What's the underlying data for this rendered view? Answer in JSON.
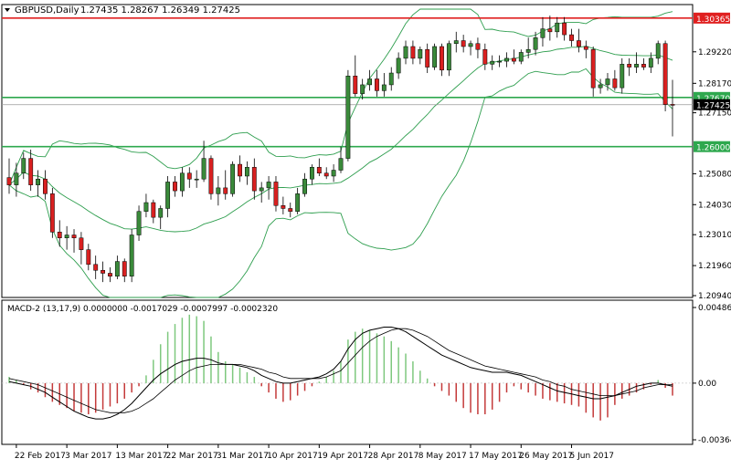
{
  "header": {
    "symbol": "GBPUSD,Daily",
    "ohlc": "1.27435 1.28267 1.26349 1.27425"
  },
  "indicator": {
    "label": "MACD-2 (13,17,9) 0.0000000 -0.0017029 -0.0007997 -0.0002320"
  },
  "colors": {
    "background": "#ffffff",
    "frame": "#000000",
    "bull_candle": "#3a8a3a",
    "bear_candle": "#d92020",
    "bollinger": "#2e9e4e",
    "resistance_line": "#e02020",
    "support_line": "#2ea84e",
    "hist_pos": "#7ec87e",
    "hist_neg": "#c43a3a"
  },
  "chart_data": [
    {
      "type": "candlestick",
      "title": "GBPUSD,Daily",
      "ylim": [
        1.2094,
        1.3036
      ],
      "y_ticks": [
        1.3036,
        1.2922,
        1.2815,
        1.2767,
        1.2715,
        1.26,
        1.2508,
        1.2403,
        1.2301,
        1.2196,
        1.2094
      ],
      "y_tick_labels": [
        "1.30365",
        "1.29220",
        "1.28170",
        "1.27670",
        "1.27150",
        "1.26000",
        "1.25080",
        "1.24030",
        "1.23010",
        "1.21960",
        "1.20940"
      ],
      "x_tick_labels": [
        "22 Feb 2017",
        "3 Mar 2017",
        "13 Mar 2017",
        "22 Mar 2017",
        "31 Mar 2017",
        "10 Apr 2017",
        "19 Apr 2017",
        "28 Apr 2017",
        "8 May 2017",
        "17 May 2017",
        "26 May 2017",
        "5 Jun 2017"
      ],
      "current_price_label": "1.27425",
      "horizontal_levels": [
        {
          "value": 1.30365,
          "label": "1.30365",
          "color": "#e02020"
        },
        {
          "value": 1.2767,
          "label": "1.27670",
          "color": "#2ea84e"
        },
        {
          "value": 1.26,
          "label": "1.26000",
          "color": "#2ea84e"
        }
      ],
      "candles": [
        {
          "o": 1.2495,
          "h": 1.256,
          "l": 1.244,
          "c": 1.247
        },
        {
          "o": 1.247,
          "h": 1.2545,
          "l": 1.243,
          "c": 1.251
        },
        {
          "o": 1.251,
          "h": 1.258,
          "l": 1.249,
          "c": 1.256
        },
        {
          "o": 1.256,
          "h": 1.259,
          "l": 1.245,
          "c": 1.247
        },
        {
          "o": 1.247,
          "h": 1.252,
          "l": 1.243,
          "c": 1.249
        },
        {
          "o": 1.249,
          "h": 1.252,
          "l": 1.242,
          "c": 1.244
        },
        {
          "o": 1.244,
          "h": 1.246,
          "l": 1.229,
          "c": 1.231
        },
        {
          "o": 1.231,
          "h": 1.235,
          "l": 1.226,
          "c": 1.229
        },
        {
          "o": 1.229,
          "h": 1.233,
          "l": 1.225,
          "c": 1.23
        },
        {
          "o": 1.23,
          "h": 1.232,
          "l": 1.224,
          "c": 1.229
        },
        {
          "o": 1.229,
          "h": 1.231,
          "l": 1.22,
          "c": 1.225
        },
        {
          "o": 1.225,
          "h": 1.227,
          "l": 1.218,
          "c": 1.22
        },
        {
          "o": 1.22,
          "h": 1.223,
          "l": 1.215,
          "c": 1.218
        },
        {
          "o": 1.218,
          "h": 1.221,
          "l": 1.214,
          "c": 1.217
        },
        {
          "o": 1.217,
          "h": 1.219,
          "l": 1.214,
          "c": 1.216
        },
        {
          "o": 1.216,
          "h": 1.223,
          "l": 1.215,
          "c": 1.221
        },
        {
          "o": 1.221,
          "h": 1.222,
          "l": 1.214,
          "c": 1.216
        },
        {
          "o": 1.216,
          "h": 1.232,
          "l": 1.214,
          "c": 1.23
        },
        {
          "o": 1.23,
          "h": 1.24,
          "l": 1.228,
          "c": 1.238
        },
        {
          "o": 1.238,
          "h": 1.244,
          "l": 1.236,
          "c": 1.241
        },
        {
          "o": 1.241,
          "h": 1.242,
          "l": 1.234,
          "c": 1.236
        },
        {
          "o": 1.236,
          "h": 1.24,
          "l": 1.232,
          "c": 1.239
        },
        {
          "o": 1.239,
          "h": 1.25,
          "l": 1.236,
          "c": 1.248
        },
        {
          "o": 1.248,
          "h": 1.25,
          "l": 1.243,
          "c": 1.245
        },
        {
          "o": 1.245,
          "h": 1.253,
          "l": 1.243,
          "c": 1.251
        },
        {
          "o": 1.251,
          "h": 1.253,
          "l": 1.246,
          "c": 1.249
        },
        {
          "o": 1.249,
          "h": 1.252,
          "l": 1.246,
          "c": 1.249
        },
        {
          "o": 1.249,
          "h": 1.262,
          "l": 1.248,
          "c": 1.256
        },
        {
          "o": 1.256,
          "h": 1.257,
          "l": 1.242,
          "c": 1.244
        },
        {
          "o": 1.244,
          "h": 1.25,
          "l": 1.24,
          "c": 1.246
        },
        {
          "o": 1.246,
          "h": 1.252,
          "l": 1.242,
          "c": 1.244
        },
        {
          "o": 1.244,
          "h": 1.255,
          "l": 1.243,
          "c": 1.254
        },
        {
          "o": 1.254,
          "h": 1.257,
          "l": 1.248,
          "c": 1.25
        },
        {
          "o": 1.25,
          "h": 1.255,
          "l": 1.247,
          "c": 1.253
        },
        {
          "o": 1.253,
          "h": 1.256,
          "l": 1.242,
          "c": 1.245
        },
        {
          "o": 1.245,
          "h": 1.248,
          "l": 1.241,
          "c": 1.246
        },
        {
          "o": 1.246,
          "h": 1.25,
          "l": 1.242,
          "c": 1.248
        },
        {
          "o": 1.248,
          "h": 1.25,
          "l": 1.238,
          "c": 1.24
        },
        {
          "o": 1.24,
          "h": 1.243,
          "l": 1.237,
          "c": 1.239
        },
        {
          "o": 1.239,
          "h": 1.241,
          "l": 1.236,
          "c": 1.238
        },
        {
          "o": 1.238,
          "h": 1.246,
          "l": 1.237,
          "c": 1.244
        },
        {
          "o": 1.244,
          "h": 1.251,
          "l": 1.243,
          "c": 1.249
        },
        {
          "o": 1.249,
          "h": 1.254,
          "l": 1.247,
          "c": 1.253
        },
        {
          "o": 1.253,
          "h": 1.256,
          "l": 1.25,
          "c": 1.251
        },
        {
          "o": 1.251,
          "h": 1.253,
          "l": 1.249,
          "c": 1.25
        },
        {
          "o": 1.25,
          "h": 1.254,
          "l": 1.248,
          "c": 1.252
        },
        {
          "o": 1.252,
          "h": 1.26,
          "l": 1.251,
          "c": 1.256
        },
        {
          "o": 1.256,
          "h": 1.286,
          "l": 1.255,
          "c": 1.284
        },
        {
          "o": 1.284,
          "h": 1.291,
          "l": 1.277,
          "c": 1.278
        },
        {
          "o": 1.278,
          "h": 1.283,
          "l": 1.276,
          "c": 1.281
        },
        {
          "o": 1.281,
          "h": 1.286,
          "l": 1.279,
          "c": 1.283
        },
        {
          "o": 1.283,
          "h": 1.286,
          "l": 1.277,
          "c": 1.279
        },
        {
          "o": 1.279,
          "h": 1.285,
          "l": 1.277,
          "c": 1.281
        },
        {
          "o": 1.281,
          "h": 1.287,
          "l": 1.279,
          "c": 1.285
        },
        {
          "o": 1.285,
          "h": 1.292,
          "l": 1.283,
          "c": 1.29
        },
        {
          "o": 1.29,
          "h": 1.296,
          "l": 1.288,
          "c": 1.294
        },
        {
          "o": 1.294,
          "h": 1.296,
          "l": 1.288,
          "c": 1.29
        },
        {
          "o": 1.29,
          "h": 1.294,
          "l": 1.288,
          "c": 1.293
        },
        {
          "o": 1.293,
          "h": 1.295,
          "l": 1.285,
          "c": 1.287
        },
        {
          "o": 1.287,
          "h": 1.295,
          "l": 1.286,
          "c": 1.294
        },
        {
          "o": 1.294,
          "h": 1.295,
          "l": 1.284,
          "c": 1.286
        },
        {
          "o": 1.286,
          "h": 1.296,
          "l": 1.284,
          "c": 1.295
        },
        {
          "o": 1.295,
          "h": 1.299,
          "l": 1.292,
          "c": 1.296
        },
        {
          "o": 1.296,
          "h": 1.298,
          "l": 1.292,
          "c": 1.294
        },
        {
          "o": 1.294,
          "h": 1.296,
          "l": 1.291,
          "c": 1.295
        },
        {
          "o": 1.295,
          "h": 1.297,
          "l": 1.29,
          "c": 1.293
        },
        {
          "o": 1.293,
          "h": 1.295,
          "l": 1.286,
          "c": 1.288
        },
        {
          "o": 1.288,
          "h": 1.291,
          "l": 1.286,
          "c": 1.289
        },
        {
          "o": 1.289,
          "h": 1.291,
          "l": 1.287,
          "c": 1.289
        },
        {
          "o": 1.289,
          "h": 1.292,
          "l": 1.287,
          "c": 1.29
        },
        {
          "o": 1.29,
          "h": 1.293,
          "l": 1.288,
          "c": 1.289
        },
        {
          "o": 1.289,
          "h": 1.293,
          "l": 1.288,
          "c": 1.292
        },
        {
          "o": 1.292,
          "h": 1.297,
          "l": 1.29,
          "c": 1.293
        },
        {
          "o": 1.293,
          "h": 1.299,
          "l": 1.291,
          "c": 1.297
        },
        {
          "o": 1.297,
          "h": 1.304,
          "l": 1.294,
          "c": 1.3
        },
        {
          "o": 1.3,
          "h": 1.3045,
          "l": 1.296,
          "c": 1.299
        },
        {
          "o": 1.299,
          "h": 1.304,
          "l": 1.297,
          "c": 1.302
        },
        {
          "o": 1.302,
          "h": 1.304,
          "l": 1.296,
          "c": 1.298
        },
        {
          "o": 1.298,
          "h": 1.3,
          "l": 1.294,
          "c": 1.296
        },
        {
          "o": 1.296,
          "h": 1.3,
          "l": 1.292,
          "c": 1.294
        },
        {
          "o": 1.294,
          "h": 1.296,
          "l": 1.29,
          "c": 1.293
        },
        {
          "o": 1.293,
          "h": 1.294,
          "l": 1.277,
          "c": 1.28
        },
        {
          "o": 1.28,
          "h": 1.283,
          "l": 1.278,
          "c": 1.281
        },
        {
          "o": 1.281,
          "h": 1.285,
          "l": 1.279,
          "c": 1.283
        },
        {
          "o": 1.283,
          "h": 1.286,
          "l": 1.279,
          "c": 1.28
        },
        {
          "o": 1.28,
          "h": 1.29,
          "l": 1.278,
          "c": 1.288
        },
        {
          "o": 1.288,
          "h": 1.29,
          "l": 1.284,
          "c": 1.287
        },
        {
          "o": 1.287,
          "h": 1.292,
          "l": 1.285,
          "c": 1.288
        },
        {
          "o": 1.288,
          "h": 1.29,
          "l": 1.286,
          "c": 1.287
        },
        {
          "o": 1.287,
          "h": 1.292,
          "l": 1.285,
          "c": 1.29
        },
        {
          "o": 1.29,
          "h": 1.296,
          "l": 1.288,
          "c": 1.295
        },
        {
          "o": 1.295,
          "h": 1.296,
          "l": 1.272,
          "c": 1.2743
        },
        {
          "o": 1.27435,
          "h": 1.28267,
          "l": 1.26349,
          "c": 1.27425
        }
      ]
    },
    {
      "type": "macd",
      "title": "MACD-2 (13,17,9)",
      "ylim": [
        -0.00364,
        0.00486
      ],
      "y_tick_labels": [
        "0.004864",
        "0.00",
        "-0.003643"
      ],
      "series": [
        {
          "name": "histogram",
          "values": [
            0.0004,
            0.0002,
            -0.0001,
            -0.0004,
            -0.0006,
            -0.0009,
            -0.0012,
            -0.0014,
            -0.0016,
            -0.0018,
            -0.0019,
            -0.002,
            -0.0019,
            -0.0017,
            -0.0015,
            -0.0013,
            -0.001,
            -0.0006,
            -0.0002,
            0.0005,
            0.0015,
            0.0025,
            0.0033,
            0.0038,
            0.0042,
            0.0044,
            0.0043,
            0.004,
            0.003,
            0.002,
            0.0014,
            0.0012,
            0.001,
            0.0007,
            0.0004,
            -0.0002,
            -0.0006,
            -0.001,
            -0.0012,
            -0.0011,
            -0.0008,
            -0.0005,
            -0.0002,
            0.0001,
            0.0004,
            0.0008,
            0.0014,
            0.0028,
            0.0033,
            0.0035,
            0.0034,
            0.0032,
            0.003,
            0.0027,
            0.0023,
            0.0019,
            0.0014,
            0.0008,
            0.0003,
            -0.0002,
            -0.0005,
            -0.0008,
            -0.0012,
            -0.0016,
            -0.0019,
            -0.002,
            -0.002,
            -0.0017,
            -0.0012,
            -0.0006,
            -0.0002,
            -0.0004,
            -0.0006,
            -0.0008,
            -0.001,
            -0.0011,
            -0.0012,
            -0.0013,
            -0.0014,
            -0.0015,
            -0.0019,
            -0.0022,
            -0.0024,
            -0.0022,
            -0.0014,
            -0.001,
            -0.0008,
            -0.0006,
            -0.0004,
            -0.0001,
            0.0002,
            -0.0003,
            -0.0008
          ]
        },
        {
          "name": "macd",
          "values": [
            0.0001,
            0.0,
            -0.0001,
            -0.0002,
            -0.0004,
            -0.0006,
            -0.0009,
            -0.0012,
            -0.0015,
            -0.0018,
            -0.002,
            -0.0022,
            -0.0023,
            -0.0023,
            -0.0022,
            -0.002,
            -0.0017,
            -0.0013,
            -0.0008,
            -0.0003,
            0.0002,
            0.0006,
            0.0009,
            0.0012,
            0.0014,
            0.0015,
            0.0016,
            0.0016,
            0.0015,
            0.0013,
            0.0012,
            0.0012,
            0.0011,
            0.001,
            0.0008,
            0.0005,
            0.0003,
            0.0001,
            0.0,
            0.0,
            0.0001,
            0.0002,
            0.0003,
            0.0004,
            0.0006,
            0.0009,
            0.0014,
            0.0022,
            0.0028,
            0.0032,
            0.0034,
            0.0035,
            0.0036,
            0.0036,
            0.0035,
            0.0033,
            0.003,
            0.0027,
            0.0024,
            0.0021,
            0.0018,
            0.0016,
            0.0014,
            0.0012,
            0.001,
            0.0009,
            0.0008,
            0.0007,
            0.0007,
            0.0007,
            0.0006,
            0.0005,
            0.0003,
            0.0001,
            -0.0001,
            -0.0003,
            -0.0005,
            -0.0006,
            -0.0007,
            -0.0008,
            -0.0009,
            -0.001,
            -0.001,
            -0.0009,
            -0.0008,
            -0.0006,
            -0.0004,
            -0.0002,
            -0.0001,
            0.0,
            0.0,
            -0.0001,
            -0.0002
          ]
        },
        {
          "name": "signal",
          "values": [
            0.0003,
            0.0002,
            0.0001,
            0.0,
            -0.0001,
            -0.0003,
            -0.0005,
            -0.0007,
            -0.0009,
            -0.0011,
            -0.0013,
            -0.0015,
            -0.0017,
            -0.0018,
            -0.0019,
            -0.0019,
            -0.0019,
            -0.0018,
            -0.0016,
            -0.0013,
            -0.001,
            -0.0006,
            -0.0002,
            0.0002,
            0.0005,
            0.0008,
            0.001,
            0.0011,
            0.0012,
            0.0012,
            0.0012,
            0.0012,
            0.0012,
            0.0011,
            0.001,
            0.0009,
            0.0007,
            0.0006,
            0.0004,
            0.0003,
            0.0003,
            0.0003,
            0.0003,
            0.0003,
            0.0004,
            0.0006,
            0.0008,
            0.0013,
            0.0018,
            0.0023,
            0.0027,
            0.003,
            0.0032,
            0.0034,
            0.0035,
            0.0035,
            0.0034,
            0.0032,
            0.003,
            0.0027,
            0.0024,
            0.0021,
            0.0019,
            0.0017,
            0.0015,
            0.0013,
            0.0011,
            0.001,
            0.0009,
            0.0008,
            0.0007,
            0.0006,
            0.0005,
            0.0004,
            0.0002,
            0.0001,
            -0.0001,
            -0.0002,
            -0.0004,
            -0.0005,
            -0.0006,
            -0.0007,
            -0.0008,
            -0.0008,
            -0.0008,
            -0.0007,
            -0.0006,
            -0.0005,
            -0.0003,
            -0.0002,
            -0.0001,
            -0.0001,
            -0.0001
          ]
        }
      ]
    }
  ]
}
